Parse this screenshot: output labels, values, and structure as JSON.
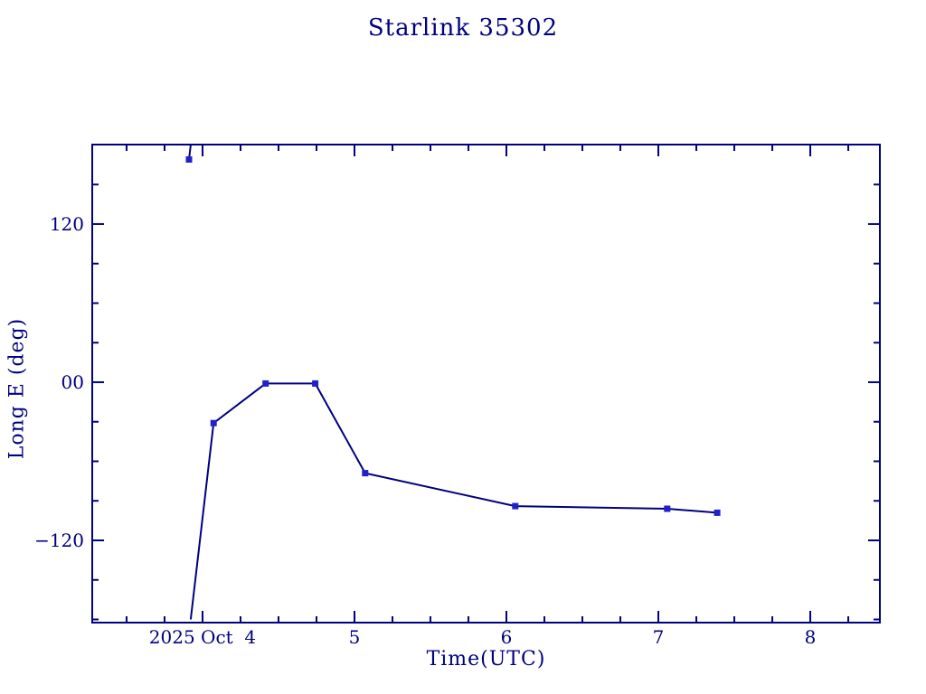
{
  "chart_data": {
    "type": "line",
    "title": "Starlink 35302",
    "xlabel": "Time(UTC)",
    "ylabel": "Long E (deg)",
    "x_axis": {
      "unit": "days since 2025 Oct 4 00:00 UTC",
      "min": -0.726,
      "max": 4.458,
      "major_ticks": [
        0,
        1,
        2,
        3,
        4
      ],
      "major_tick_labels": [
        "2025 Oct  4",
        "5",
        "6",
        "7",
        "8"
      ],
      "minor_tick_step": 0.25
    },
    "y_axis": {
      "min": -182.4,
      "max": 180.3,
      "major_ticks": [
        -120,
        0,
        120
      ],
      "major_tick_labels": [
        "−120",
        "00",
        "120"
      ],
      "minor_tick_step": 30,
      "wrap_at": 180
    },
    "series": [
      {
        "name": "Starlink 35302 longitude east",
        "marker": "filled-square",
        "x_days": [
          -0.089,
          0.073,
          0.415,
          0.742,
          1.07,
          2.058,
          3.058,
          3.387
        ],
        "y_deg": [
          169,
          -31,
          -1,
          -1,
          -69,
          -94,
          -96,
          -99
        ]
      }
    ],
    "grid": false,
    "legend": "none",
    "colors": {
      "frame": "#000080",
      "line": "#000080",
      "marker": "#2121cc",
      "text": "#000080",
      "background": "#ffffff"
    }
  }
}
